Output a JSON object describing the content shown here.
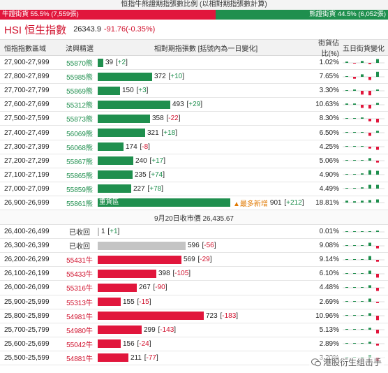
{
  "top_title": "恒指牛熊證期指張數比例 (以相對期指張數計算)",
  "ratio": {
    "bull_label": "牛證街貨 55.5% (7,559張)",
    "bear_label": "熊證街貨 44.5% (6,052張)",
    "bull_pct": 55.5,
    "bull_color": "#e1163c",
    "bear_color": "#1f8f4e"
  },
  "index": {
    "name": "HSI 恒生指數",
    "value": "26343.9",
    "change": "-91.76(-0.35%)"
  },
  "headers": {
    "range": "恒指指數區域",
    "code": "法興精選",
    "bar": "相對期指張數 [括號內為一日變化]",
    "share": "街貨佔比(%)",
    "trend": "五日街貨變化"
  },
  "bear_rows": [
    {
      "range": "27,900-27,999",
      "code": "55870熊",
      "value": "39",
      "change": "+2",
      "dir": "up",
      "num": 39,
      "share": "1.02%",
      "trend": [
        0.2,
        -0.1,
        0.3,
        -0.2,
        0.6
      ]
    },
    {
      "range": "27,800-27,899",
      "code": "55985熊",
      "value": "372",
      "change": "+10",
      "dir": "up",
      "num": 372,
      "share": "7.65%",
      "trend": [
        0.1,
        -0.3,
        0.4,
        -0.5,
        0.8
      ]
    },
    {
      "range": "27,700-27,799",
      "code": "55869熊",
      "value": "150",
      "change": "+3",
      "dir": "up",
      "num": 150,
      "share": "3.30%",
      "trend": [
        0.1,
        0.2,
        -0.6,
        -0.7,
        0.2
      ]
    },
    {
      "range": "27,600-27,699",
      "code": "55312熊",
      "value": "493",
      "change": "+29",
      "dir": "up",
      "num": 493,
      "share": "10.63%",
      "trend": [
        0.2,
        0.2,
        -0.5,
        -0.6,
        0.3
      ]
    },
    {
      "range": "27,500-27,599",
      "code": "55873熊",
      "value": "358",
      "change": "-22",
      "dir": "down",
      "num": 358,
      "share": "8.30%",
      "trend": [
        0.1,
        0.1,
        0.2,
        -0.4,
        -0.6
      ]
    },
    {
      "range": "27,400-27,499",
      "code": "56069熊",
      "value": "321",
      "change": "+18",
      "dir": "up",
      "num": 321,
      "share": "6.50%",
      "trend": [
        0.1,
        0.1,
        0.1,
        -0.5,
        0.3
      ]
    },
    {
      "range": "27,300-27,399",
      "code": "56068熊",
      "value": "174",
      "change": "-8",
      "dir": "down",
      "num": 174,
      "share": "4.25%",
      "trend": [
        0.1,
        0.1,
        0.1,
        -0.3,
        -0.5
      ]
    },
    {
      "range": "27,200-27,299",
      "code": "55867熊",
      "value": "240",
      "change": "+17",
      "dir": "up",
      "num": 240,
      "share": "5.06%",
      "trend": [
        0.1,
        0.1,
        0.1,
        0.4,
        -0.3
      ]
    },
    {
      "range": "27,100-27,199",
      "code": "55865熊",
      "value": "235",
      "change": "+74",
      "dir": "up",
      "num": 235,
      "share": "4.90%",
      "trend": [
        0.1,
        0.1,
        0.2,
        0.7,
        0.6
      ]
    },
    {
      "range": "27,000-27,099",
      "code": "55859熊",
      "value": "227",
      "change": "+78",
      "dir": "up",
      "num": 227,
      "share": "4.49%",
      "trend": [
        0.1,
        0.1,
        0.2,
        0.6,
        0.6
      ]
    },
    {
      "range": "26,900-26,999",
      "code": "55861熊",
      "value": "901",
      "change": "+212",
      "dir": "up",
      "num": 901,
      "share": "18.81%",
      "heavy": "重貨區",
      "most_new": "▲最多新增",
      "trend": [
        0.3,
        0.2,
        0.3,
        0.4,
        0.5
      ]
    }
  ],
  "close_label": "9月20日收市價 26,435.67",
  "bull_rows": [
    {
      "range": "26,400-26,499",
      "code": "已收回",
      "value": "1",
      "change": "+1",
      "dir": "up",
      "num": 1,
      "share": "0.01%",
      "recalled": true,
      "trend": [
        0.0,
        0.0,
        0.0,
        0.0,
        0.2
      ]
    },
    {
      "range": "26,300-26,399",
      "code": "已收回",
      "value": "596",
      "change": "-56",
      "dir": "down",
      "num": 596,
      "share": "9.08%",
      "recalled": true,
      "trend": [
        0.0,
        0.0,
        0.0,
        0.5,
        -0.4
      ]
    },
    {
      "range": "26,200-26,299",
      "code": "55431牛",
      "value": "569",
      "change": "-29",
      "dir": "down",
      "num": 569,
      "share": "9.14%",
      "trend": [
        0.0,
        0.0,
        0.0,
        0.6,
        -0.3
      ]
    },
    {
      "range": "26,100-26,199",
      "code": "55433牛",
      "value": "398",
      "change": "-105",
      "dir": "down",
      "num": 398,
      "share": "6.10%",
      "trend": [
        0.0,
        0.0,
        0.0,
        0.5,
        -0.6
      ]
    },
    {
      "range": "26,000-26,099",
      "code": "55316牛",
      "value": "267",
      "change": "-90",
      "dir": "down",
      "num": 267,
      "share": "4.48%",
      "trend": [
        0.0,
        0.0,
        0.0,
        0.4,
        -0.5
      ]
    },
    {
      "range": "25,900-25,999",
      "code": "55313牛",
      "value": "155",
      "change": "-15",
      "dir": "down",
      "num": 155,
      "share": "2.69%",
      "trend": [
        0.0,
        0.0,
        0.0,
        0.5,
        -0.2
      ]
    },
    {
      "range": "25,800-25,899",
      "code": "54981牛",
      "value": "723",
      "change": "-183",
      "dir": "down",
      "num": 723,
      "share": "10.96%",
      "trend": [
        0.0,
        0.0,
        0.0,
        0.4,
        -0.7
      ]
    },
    {
      "range": "25,700-25,799",
      "code": "54980牛",
      "value": "299",
      "change": "-143",
      "dir": "down",
      "num": 299,
      "share": "5.13%",
      "trend": [
        0.0,
        0.0,
        0.0,
        0.3,
        -0.6
      ]
    },
    {
      "range": "25,600-25,699",
      "code": "55042牛",
      "value": "156",
      "change": "-24",
      "dir": "down",
      "num": 156,
      "share": "2.89%",
      "trend": [
        0.0,
        0.0,
        0.0,
        0.3,
        -0.3
      ]
    },
    {
      "range": "25,500-25,599",
      "code": "54881牛",
      "value": "211",
      "change": "-77",
      "dir": "down",
      "num": 211,
      "share": "3.20%",
      "trend": [
        0.0,
        0.0,
        0.0,
        0.4,
        -0.5
      ]
    }
  ],
  "max_num": 901,
  "watermark": "港股衍生组击手"
}
